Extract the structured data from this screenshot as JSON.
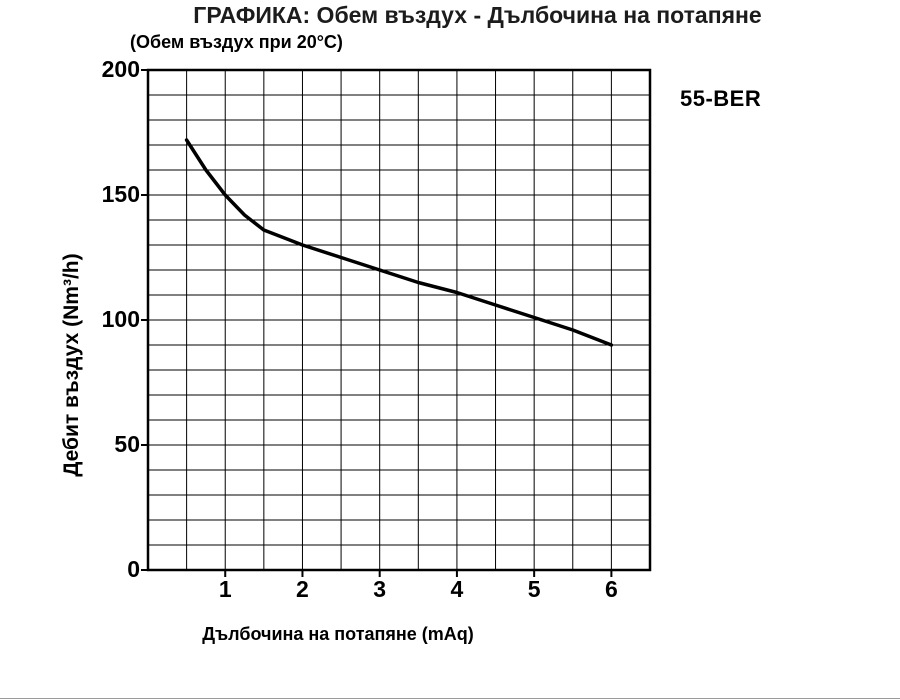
{
  "chart_data": {
    "type": "line",
    "title": "ГРАФИКА: Обем въздух - Дълбочина на потапяне",
    "subtitle": "(Обем въздух при 20°C)",
    "annotation": "55-BER",
    "xlabel": "Дълбочина на потапяне (mAq)",
    "ylabel": "Дебит въздух (Nm³/h)",
    "xlim": [
      0,
      6.5
    ],
    "ylim": [
      0,
      200
    ],
    "x_ticks": [
      1,
      2,
      3,
      4,
      5,
      6
    ],
    "y_ticks": [
      0,
      50,
      100,
      150,
      200
    ],
    "x_minor_step": 0.5,
    "y_minor_step": 10,
    "grid": "on",
    "legend": "none",
    "grid_color": "#000000",
    "line_color": "#000000",
    "series": [
      {
        "name": "55-BER",
        "points": [
          [
            0.5,
            172
          ],
          [
            0.75,
            160
          ],
          [
            1,
            150
          ],
          [
            1.25,
            142
          ],
          [
            1.5,
            136
          ],
          [
            1.75,
            133
          ],
          [
            2,
            130
          ],
          [
            2.5,
            125
          ],
          [
            3,
            120
          ],
          [
            3.5,
            115
          ],
          [
            4,
            111
          ],
          [
            4.5,
            106
          ],
          [
            5,
            101
          ],
          [
            5.5,
            96
          ],
          [
            6,
            90
          ]
        ]
      }
    ]
  }
}
